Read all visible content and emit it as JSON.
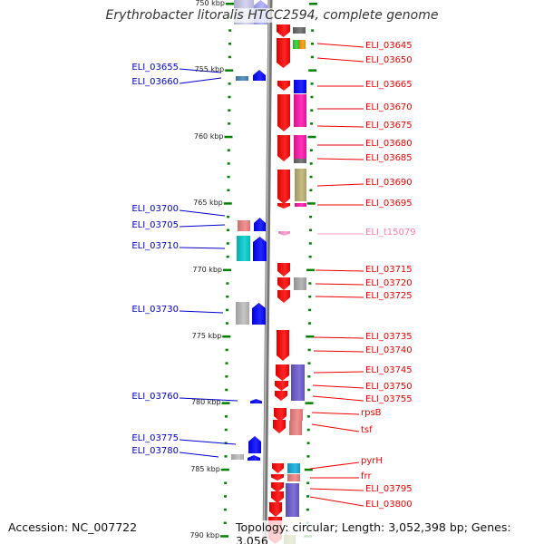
{
  "title": "Erythrobacter litoralis HTCC2594, complete genome",
  "accession": "Accession: NC_007722",
  "summary": "Topology: circular; Length: 3,052,398 bp; Genes: 3,056",
  "kbp_ticks": [
    "750 kbp",
    "755 kbp",
    "760 kbp",
    "765 kbp",
    "770 kbp",
    "775 kbp",
    "780 kbp",
    "785 kbp",
    "790 kbp"
  ],
  "left_labels": [
    "ELI_03655",
    "ELI_03660",
    "ELI_03700",
    "ELI_03705",
    "ELI_03710",
    "ELI_03730",
    "ELI_03760",
    "ELI_03775",
    "ELI_03780"
  ],
  "right_labels": [
    "ELI_03645",
    "ELI_03650",
    "ELI_03665",
    "ELI_03670",
    "ELI_03675",
    "ELI_03680",
    "ELI_03685",
    "ELI_03690",
    "ELI_03695",
    "ELI_t15079",
    "ELI_03715",
    "ELI_03720",
    "ELI_03725",
    "ELI_03735",
    "ELI_03740",
    "ELI_03745",
    "ELI_03750",
    "ELI_03755",
    "rpsB",
    "tsf",
    "pyrH",
    "frr",
    "ELI_03795",
    "ELI_03800"
  ],
  "colors": {
    "forward": "#0000ff",
    "reverse": "#ff0000",
    "trna": "#ff88bb",
    "axis": "#777777",
    "ticks": "#008000"
  }
}
